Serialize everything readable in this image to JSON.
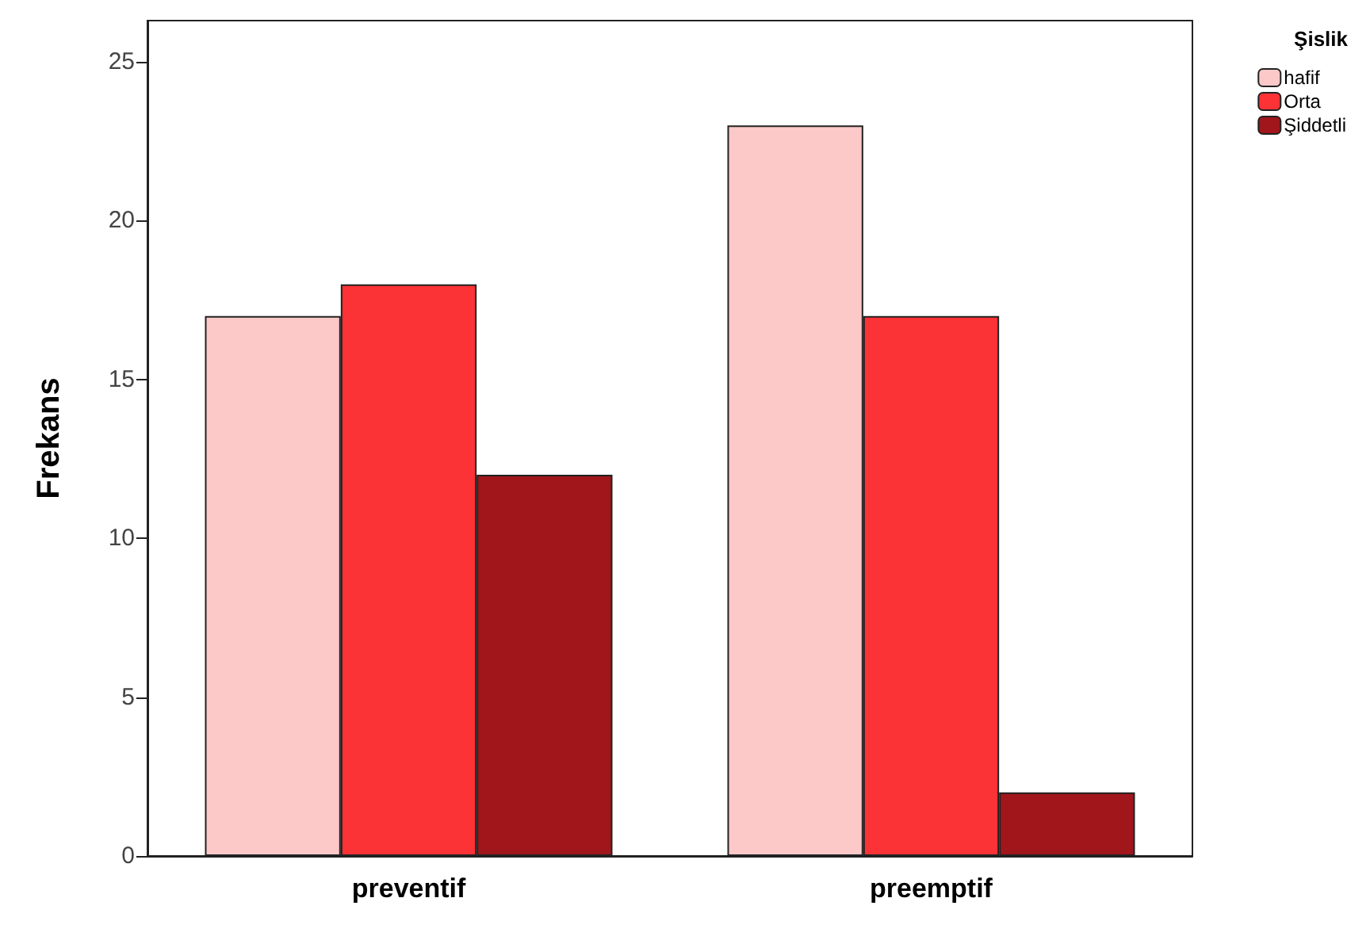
{
  "chart_data": {
    "type": "bar",
    "ylabel": "Frekans",
    "legend_title": "Şislik",
    "categories": [
      "preventif",
      "preemptif"
    ],
    "series": [
      {
        "name": "hafif",
        "color": "#fcc8c8",
        "values": [
          17,
          23
        ]
      },
      {
        "name": "Orta",
        "color": "#fb3236",
        "values": [
          18,
          17
        ]
      },
      {
        "name": "Şiddetli",
        "color": "#a0161b",
        "values": [
          12,
          2
        ]
      }
    ],
    "ylim": [
      0,
      26.3
    ],
    "yticks": [
      0,
      5,
      10,
      15,
      20,
      25
    ],
    "grid": false,
    "legend": "top right"
  }
}
